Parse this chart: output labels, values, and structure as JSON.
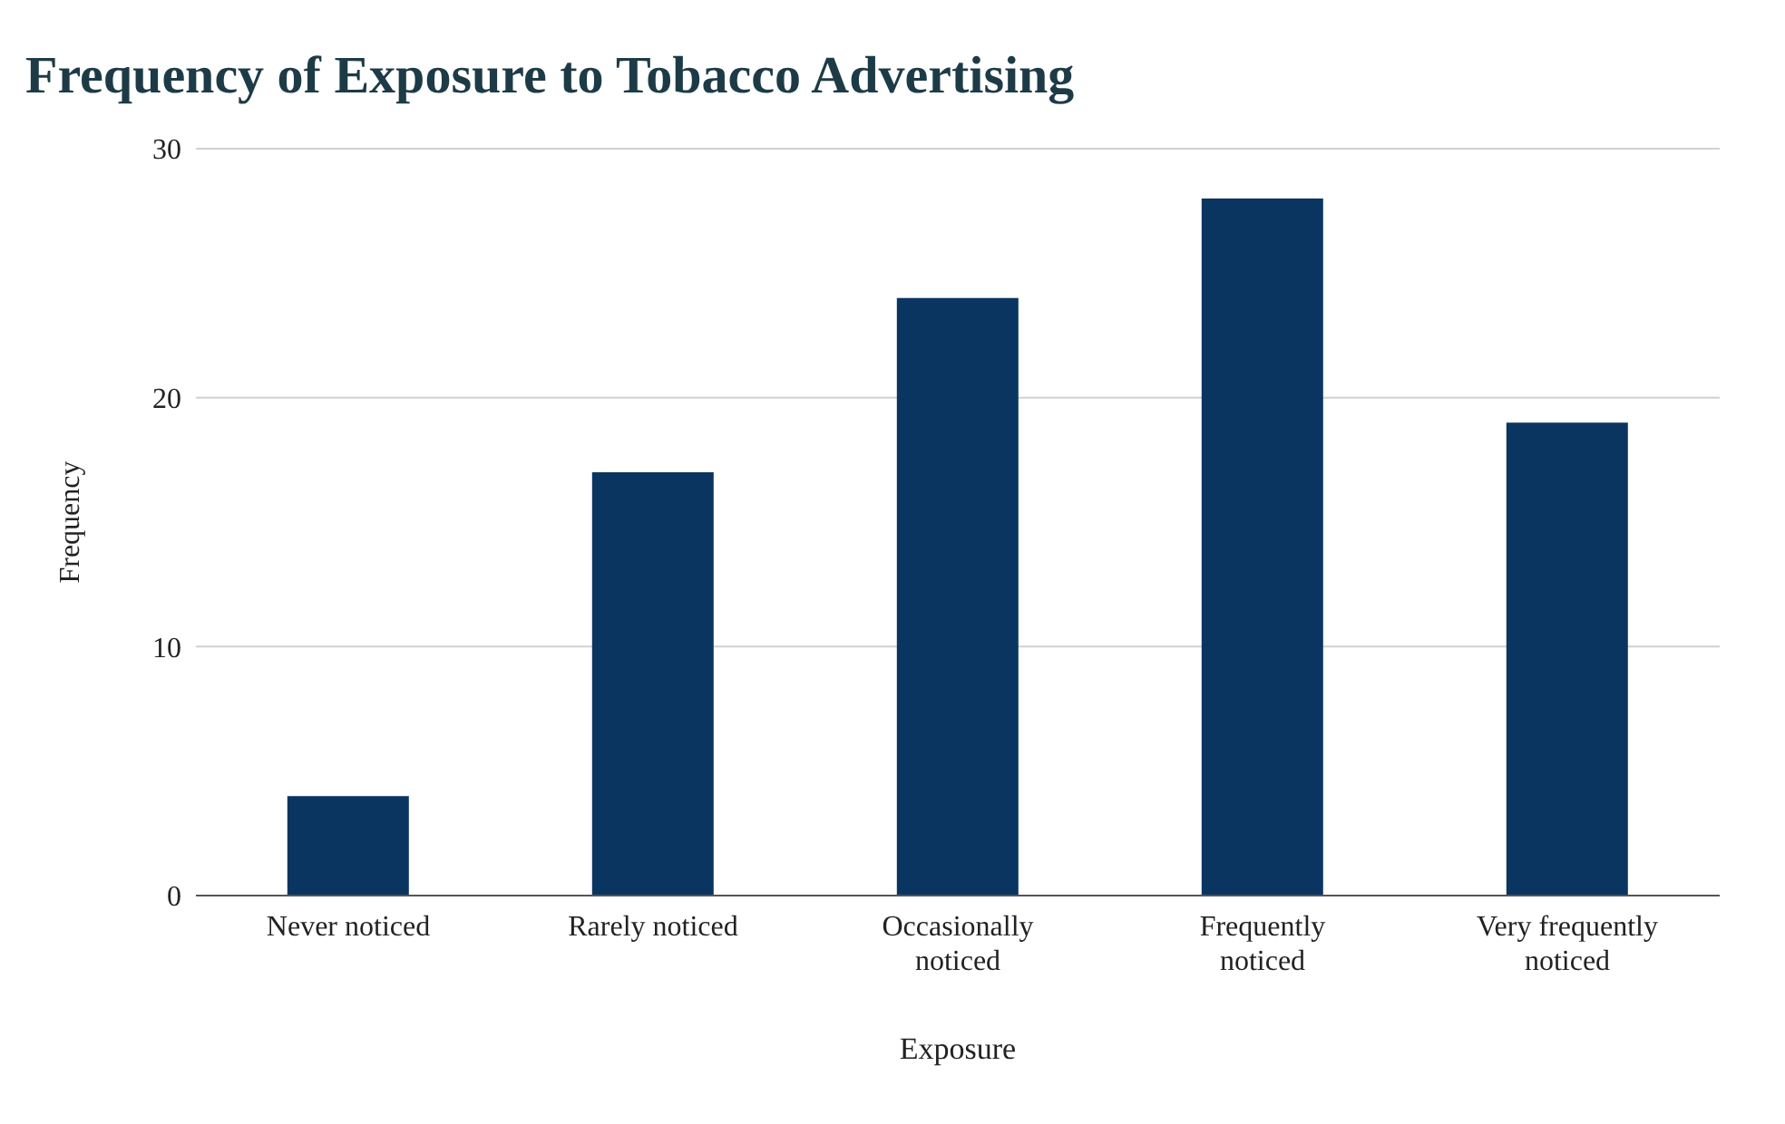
{
  "chart_data": {
    "type": "bar",
    "title": "Frequency of Exposure to Tobacco Advertising",
    "xlabel": "Exposure",
    "ylabel": "Frequency",
    "categories": [
      "Never noticed",
      "Rarely noticed",
      "Occasionally noticed",
      "Frequently noticed",
      "Very frequently noticed"
    ],
    "values": [
      4,
      17,
      24,
      28,
      19
    ],
    "color": "#0b3561",
    "ylim": [
      0,
      30
    ],
    "yticks": [
      0,
      10,
      20,
      30
    ],
    "grid": "y"
  }
}
